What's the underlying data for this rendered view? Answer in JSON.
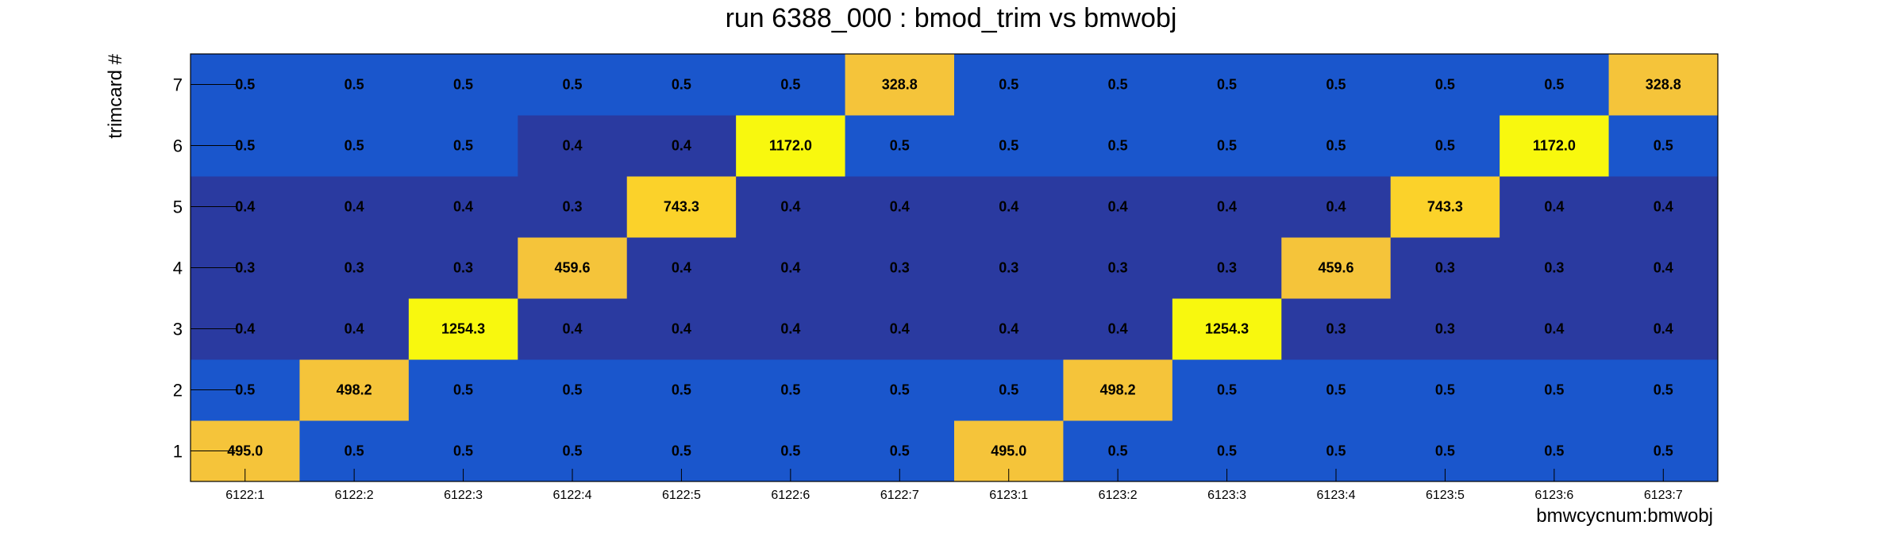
{
  "chart_data": {
    "type": "heatmap",
    "title": "run 6388_000 : bmod_trim vs bmwobj",
    "xlabel": "bmwcycnum:bmwobj",
    "ylabel": "trimcard #",
    "x_categories": [
      "6122:1",
      "6122:2",
      "6122:3",
      "6122:4",
      "6122:5",
      "6122:6",
      "6122:7",
      "6123:1",
      "6123:2",
      "6123:3",
      "6123:4",
      "6123:5",
      "6123:6",
      "6123:7"
    ],
    "y_categories": [
      "1",
      "2",
      "3",
      "4",
      "5",
      "6",
      "7"
    ],
    "values": [
      [
        "495.0",
        "0.5",
        "0.5",
        "0.5",
        "0.5",
        "0.5",
        "0.5",
        "495.0",
        "0.5",
        "0.5",
        "0.5",
        "0.5",
        "0.5",
        "0.5"
      ],
      [
        "0.5",
        "498.2",
        "0.5",
        "0.5",
        "0.5",
        "0.5",
        "0.5",
        "0.5",
        "498.2",
        "0.5",
        "0.5",
        "0.5",
        "0.5",
        "0.5"
      ],
      [
        "0.4",
        "0.4",
        "1254.3",
        "0.4",
        "0.4",
        "0.4",
        "0.4",
        "0.4",
        "0.4",
        "1254.3",
        "0.3",
        "0.3",
        "0.4",
        "0.4"
      ],
      [
        "0.3",
        "0.3",
        "0.3",
        "459.6",
        "0.4",
        "0.4",
        "0.3",
        "0.3",
        "0.3",
        "0.3",
        "459.6",
        "0.3",
        "0.3",
        "0.4"
      ],
      [
        "0.4",
        "0.4",
        "0.4",
        "0.3",
        "743.3",
        "0.4",
        "0.4",
        "0.4",
        "0.4",
        "0.4",
        "0.4",
        "743.3",
        "0.4",
        "0.4"
      ],
      [
        "0.5",
        "0.5",
        "0.5",
        "0.4",
        "0.4",
        "1172.0",
        "0.5",
        "0.5",
        "0.5",
        "0.5",
        "0.5",
        "0.5",
        "1172.0",
        "0.5"
      ],
      [
        "0.5",
        "0.5",
        "0.5",
        "0.5",
        "0.5",
        "0.5",
        "328.8",
        "0.5",
        "0.5",
        "0.5",
        "0.5",
        "0.5",
        "0.5",
        "328.8"
      ]
    ],
    "colors": {
      "low_dark": "#2a3aa0",
      "low_mid": "#1a56cc",
      "high_orange": "#f5c43a",
      "high_gold": "#fbd22a",
      "high_yellow": "#f8f80e"
    },
    "grid": false
  }
}
